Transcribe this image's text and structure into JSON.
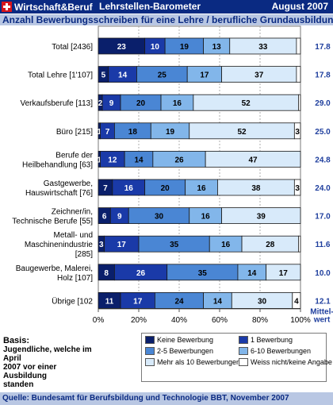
{
  "header": {
    "brand": "Wirtschaft&Beruf",
    "product": "Lehrstellen-Barometer",
    "date": "August 2007"
  },
  "colors": {
    "header_bg": "#0a2a82",
    "subtitle_bg": "#b9c7e3",
    "mean_text": "#1f3f9e",
    "series": [
      "#0a1f6b",
      "#1a3aa8",
      "#4a86d4",
      "#82b6ea",
      "#d8eafa",
      "#ffffff"
    ]
  },
  "chart_data": {
    "type": "bar",
    "orientation": "horizontal",
    "stacked": true,
    "percent": true,
    "title": "Anzahl Bewerbungsschreiben für eine Lehre / berufliche Grundausbildung",
    "categories": [
      [
        "Total [2436]"
      ],
      [
        "Total Lehre [1'107]"
      ],
      [
        "Verkaufsberufe [113]"
      ],
      [
        "Büro [215]"
      ],
      [
        "Berufe der",
        "Heilbehandlung [63]"
      ],
      [
        "Gastgewerbe,",
        "Hauswirtschaft [76]"
      ],
      [
        "Zeichner/in,",
        "Technische Berufe [55]"
      ],
      [
        "Metall-  und",
        "Maschinenindustrie",
        "[285]"
      ],
      [
        "Baugewerbe, Malerei,",
        "Holz [107]"
      ],
      [
        "Übrige [102"
      ]
    ],
    "series": [
      {
        "name": "Keine Bewerbung",
        "values": [
          23,
          5,
          2,
          1,
          1,
          7,
          6,
          3,
          8,
          11
        ]
      },
      {
        "name": "1 Bewerbung",
        "values": [
          10,
          14,
          9,
          7,
          12,
          16,
          9,
          17,
          26,
          17
        ]
      },
      {
        "name": "2-5 Bewerbungen",
        "values": [
          19,
          25,
          20,
          18,
          14,
          20,
          30,
          35,
          35,
          24
        ]
      },
      {
        "name": "6-10 Bewerbungen",
        "values": [
          13,
          17,
          16,
          19,
          26,
          16,
          16,
          16,
          14,
          14
        ]
      },
      {
        "name": "Mehr als 10 Bewerbungen",
        "values": [
          33,
          37,
          52,
          52,
          47,
          38,
          39,
          28,
          17,
          30
        ]
      },
      {
        "name": "Weiss nicht/keine Angabe",
        "values": [
          2,
          2,
          1,
          3,
          0,
          3,
          0,
          1,
          0,
          4
        ]
      }
    ],
    "labels": [
      [
        "23",
        "10",
        "19",
        "13",
        "33",
        ""
      ],
      [
        "5",
        "14",
        "25",
        "17",
        "37",
        ""
      ],
      [
        "2",
        "9",
        "20",
        "16",
        "52",
        ""
      ],
      [
        "1",
        "7",
        "18",
        "19",
        "52",
        "3"
      ],
      [
        "1",
        "12",
        "14",
        "26",
        "47",
        ""
      ],
      [
        "7",
        "16",
        "20",
        "16",
        "38",
        "3"
      ],
      [
        "6",
        "9",
        "30",
        "16",
        "39",
        ""
      ],
      [
        "3",
        "17",
        "35",
        "16",
        "28",
        ""
      ],
      [
        "8",
        "26",
        "35",
        "14",
        "17",
        ""
      ],
      [
        "11",
        "17",
        "24",
        "14",
        "30",
        "4"
      ]
    ],
    "mean_values": [
      "17.8",
      "17.8",
      "29.0",
      "25.0",
      "24.8",
      "24.0",
      "17.0",
      "11.6",
      "10.0",
      "12.1"
    ],
    "mean_label": [
      "Mittel-",
      "wert"
    ],
    "x_ticks": [
      "0%",
      "20%",
      "40%",
      "60%",
      "80%",
      "100%"
    ],
    "xlim": [
      0,
      100
    ],
    "grid": true,
    "legend_position": "bottom-right"
  },
  "basis": {
    "title": "Basis:",
    "lines": [
      "Jugendliche, welche im April",
      "2007 vor einer Ausbildung",
      "standen"
    ]
  },
  "source": "Quelle: Bundesamt für Berufsbildung und Technologie BBT, November 2007"
}
